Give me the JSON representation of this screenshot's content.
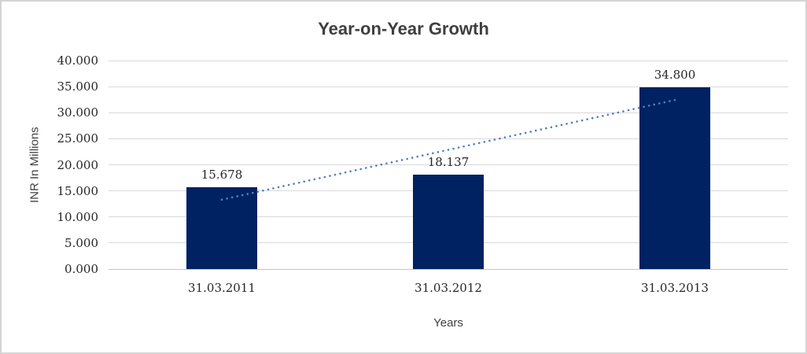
{
  "chart_data": {
    "type": "bar",
    "title": "Year-on-Year Growth",
    "xlabel": "Years",
    "ylabel": "INR In Millions",
    "categories": [
      "31.03.2011",
      "31.03.2012",
      "31.03.2013"
    ],
    "values": [
      15678,
      18137,
      34800
    ],
    "value_labels": [
      "15.678",
      "18.137",
      "34.800"
    ],
    "ylim": [
      0,
      40000
    ],
    "ytick_step": 5000,
    "ytick_labels": [
      "0.000",
      "5.000",
      "10.000",
      "15.000",
      "20.000",
      "25.000",
      "30.000",
      "35.000",
      "40.000"
    ],
    "grid": true,
    "legend": false,
    "trendline": {
      "type": "linear",
      "style": "dotted"
    },
    "colors": {
      "bar": "#002262",
      "trendline": "#4F81BD",
      "gridline": "#D9D9D9",
      "axis_line": "#C6C6C6",
      "text": "#262626",
      "title": "#3F3F3F",
      "frame_border": "#D4D4D4"
    }
  }
}
